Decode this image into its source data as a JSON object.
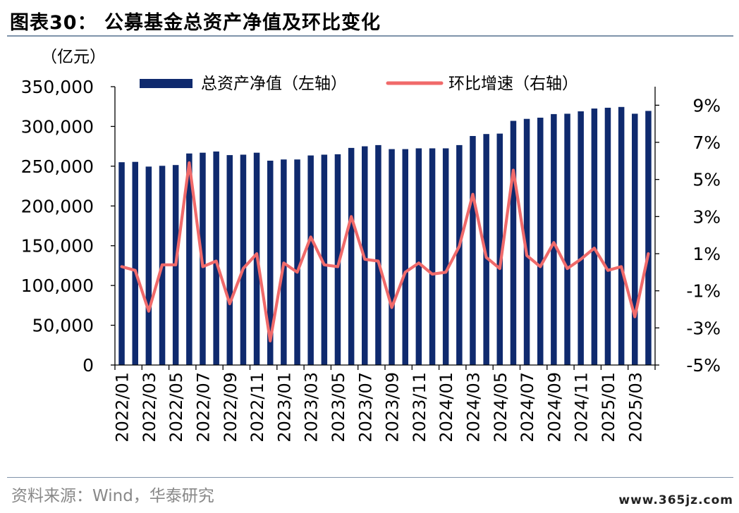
{
  "title": "图表30：  公募基金总资产净值及环比变化",
  "source": "资料来源：Wind，华泰研究",
  "watermark": "www.365jz.com",
  "colors": {
    "bar": "#0f2a6e",
    "line": "#f06a6a",
    "axis": "#000000",
    "rule": "#7f93aa"
  },
  "chart_data": {
    "type": "bar",
    "y_left_unit": "（亿元）",
    "ylim_left": [
      0,
      350000
    ],
    "yticks_left": [
      "0",
      "50,000",
      "100,000",
      "150,000",
      "200,000",
      "250,000",
      "300,000",
      "350,000"
    ],
    "ylim_right": [
      -5,
      10
    ],
    "yticks_right": [
      "-5%",
      "-3%",
      "-1%",
      "1%",
      "3%",
      "5%",
      "7%",
      "9%"
    ],
    "legend": {
      "placement": "top",
      "bar_label": "总资产净值（左轴）",
      "line_label": "环比增速（右轴）"
    },
    "categories": [
      "2022/01",
      "2022/02",
      "2022/03",
      "2022/04",
      "2022/05",
      "2022/06",
      "2022/07",
      "2022/08",
      "2022/09",
      "2022/10",
      "2022/11",
      "2022/12",
      "2023/01",
      "2023/02",
      "2023/03",
      "2023/04",
      "2023/05",
      "2023/06",
      "2023/07",
      "2023/08",
      "2023/09",
      "2023/10",
      "2023/11",
      "2023/12",
      "2024/01",
      "2024/02",
      "2024/03",
      "2024/04",
      "2024/05",
      "2024/06",
      "2024/07",
      "2024/08",
      "2024/09",
      "2024/10",
      "2024/11",
      "2024/12",
      "2025/01",
      "2025/02",
      "2025/03",
      "2025/04"
    ],
    "tick_labels": [
      "2022/01",
      "2022/03",
      "2022/05",
      "2022/07",
      "2022/09",
      "2022/11",
      "2023/01",
      "2023/03",
      "2023/05",
      "2023/07",
      "2023/09",
      "2023/11",
      "2024/01",
      "2024/03",
      "2024/05",
      "2024/07",
      "2024/09",
      "2024/11",
      "2025/01",
      "2025/03"
    ],
    "series": [
      {
        "name": "总资产净值（左轴）",
        "axis": "left",
        "type": "bar",
        "values": [
          255000,
          255500,
          249500,
          250500,
          251500,
          266000,
          267000,
          268500,
          264000,
          264500,
          267000,
          257000,
          258500,
          258500,
          263500,
          264500,
          265000,
          273000,
          275000,
          276500,
          271500,
          271500,
          272500,
          272500,
          272500,
          276500,
          288000,
          290500,
          291000,
          307000,
          309500,
          311000,
          315500,
          316000,
          319000,
          322500,
          323500,
          324500,
          316000,
          319500
        ]
      },
      {
        "name": "环比增速（右轴）",
        "axis": "right",
        "type": "line",
        "values": [
          0.3,
          0.1,
          -2.1,
          0.4,
          0.4,
          5.9,
          0.3,
          0.6,
          -1.7,
          0.2,
          1.0,
          -3.7,
          0.5,
          0.0,
          1.9,
          0.4,
          0.3,
          3.0,
          0.7,
          0.6,
          -1.9,
          0.0,
          0.5,
          -0.1,
          0.0,
          1.4,
          4.2,
          0.8,
          0.2,
          5.5,
          0.9,
          0.3,
          1.6,
          0.2,
          0.7,
          1.3,
          0.1,
          0.3,
          -2.4,
          1.0
        ]
      }
    ]
  }
}
